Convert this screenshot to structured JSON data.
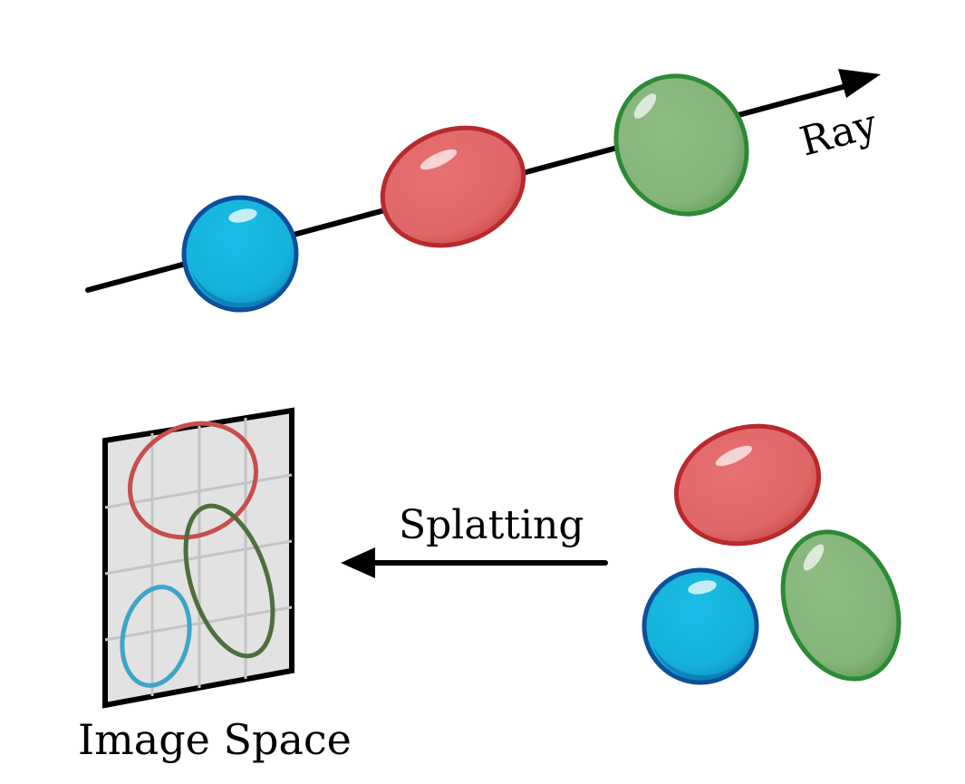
{
  "labels": {
    "ray": "Ray",
    "splatting": "Splatting",
    "image_space": "Image Space"
  },
  "colors": {
    "background": "#ffffff",
    "line": "#000000",
    "blue_fill": "#15b3dc",
    "blue_edge": "#0d4f9a",
    "red_fill": "#e06767",
    "red_edge": "#b8292e",
    "green_fill": "#85b57b",
    "green_edge": "#2c8a35",
    "plane_fill": "#e2e2e2",
    "plane_grid": "#c4c4c4",
    "proj_red": "#c84e4e",
    "proj_green": "#4f6e3e",
    "proj_blue": "#3da6c8"
  }
}
